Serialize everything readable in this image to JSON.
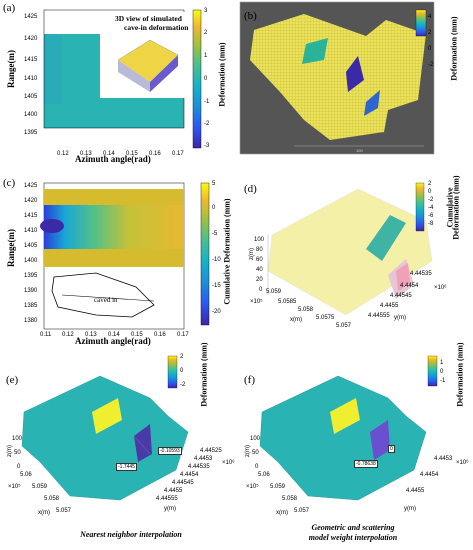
{
  "panels": {
    "a": {
      "label": "(a)",
      "inset_title_line1": "3D view of simulated",
      "inset_title_line2": "cave-in deformation",
      "ylabel": "Range(m)",
      "xlabel": "Azimuth angle(rad)",
      "yticks": [
        "1425",
        "1420",
        "1415",
        "1410",
        "1405",
        "1400",
        "1395"
      ],
      "xticks": [
        "0.12",
        "0.13",
        "0.14",
        "0.15",
        "0.16",
        "0.17"
      ],
      "cbar_ticks": [
        "3",
        "2",
        "1",
        "0",
        "-1",
        "-2",
        "-3"
      ],
      "cbar_label": "Deformation (mm)"
    },
    "b": {
      "label": "(b)",
      "cbar_ticks": [
        "4",
        "2",
        "0",
        "-2"
      ],
      "cbar_label": "Deformation (mm)",
      "scale_text": "100"
    },
    "c": {
      "label": "(c)",
      "ylabel": "Range(m)",
      "xlabel": "Azimuth angle(rad)",
      "yticks": [
        "1425",
        "1420",
        "1415",
        "1410",
        "1405",
        "1400",
        "1395",
        "1390",
        "1385",
        "1380"
      ],
      "xticks": [
        "0.11",
        "0.12",
        "0.13",
        "0.14",
        "0.15",
        "0.16",
        "0.17"
      ],
      "cbar_ticks": [
        "5",
        "0",
        "-5",
        "-10",
        "-15",
        "-20"
      ],
      "cbar_label": "Cumulative Deformation (mm)",
      "annotation": "caved in"
    },
    "d": {
      "label": "(d)",
      "cbar_ticks": [
        "2",
        "0",
        "-2",
        "-4",
        "-6",
        "-8"
      ],
      "cbar_label_line1": "Cumulative",
      "cbar_label_line2": "Deformation (mm)",
      "zlabel": "z(m)",
      "zticks": [
        "100",
        "80",
        "60",
        "40",
        "20",
        "0"
      ],
      "xlabel": "x(m)",
      "xticks": [
        "5.059",
        "5.0585",
        "5.058",
        "5.0575",
        "5.057"
      ],
      "x_exp": "×10⁵",
      "ylabel": "y(m)",
      "yticks": [
        "4.44535",
        "4.4454",
        "4.44545",
        "4.4455",
        "4.44555"
      ],
      "y_exp": "×10⁶"
    },
    "e": {
      "label": "(e)",
      "cbar_ticks": [
        "2",
        "0",
        "-2"
      ],
      "cbar_label": "Deformation (mm)",
      "zlabel": "z(m)",
      "zticks": [
        "100",
        "50",
        "0"
      ],
      "xlabel": "x(m)",
      "xticks": [
        "5.06",
        "5.059",
        "5.058",
        "5.057"
      ],
      "x_exp": "×10⁵",
      "ylabel": "y(m)",
      "yticks": [
        "4.44525",
        "4.4453",
        "4.44535",
        "4.4454",
        "4.44545",
        "4.4455",
        "4.44555"
      ],
      "y_exp": "×10⁶",
      "box1": "-0.10593",
      "box2": "-1.7445",
      "caption": "Nearest neighbor interpolation"
    },
    "f": {
      "label": "(f)",
      "cbar_ticks": [
        "1",
        "0",
        "-1"
      ],
      "cbar_label": "Deformation (mm)",
      "zlabel": "z(m)",
      "zticks": [
        "100",
        "50",
        "0"
      ],
      "xlabel": "x(m)",
      "xticks": [
        "5.06",
        "5.059",
        "5.058",
        "5.057"
      ],
      "x_exp": "×10⁵",
      "ylabel": "y(m)",
      "yticks": [
        "4.4453",
        "4.4454",
        "4.4455"
      ],
      "y_exp": "×10⁶",
      "box1": "0",
      "box2": "-0.78638",
      "caption_line1": "Geometric and scattering",
      "caption_line2": "model weight interpolation"
    }
  },
  "colors": {
    "teal": "#29b3b3",
    "yellow_surface": "#e8e25c",
    "pale_yellow": "#f5f0a8",
    "dark_bg": "#545454"
  }
}
